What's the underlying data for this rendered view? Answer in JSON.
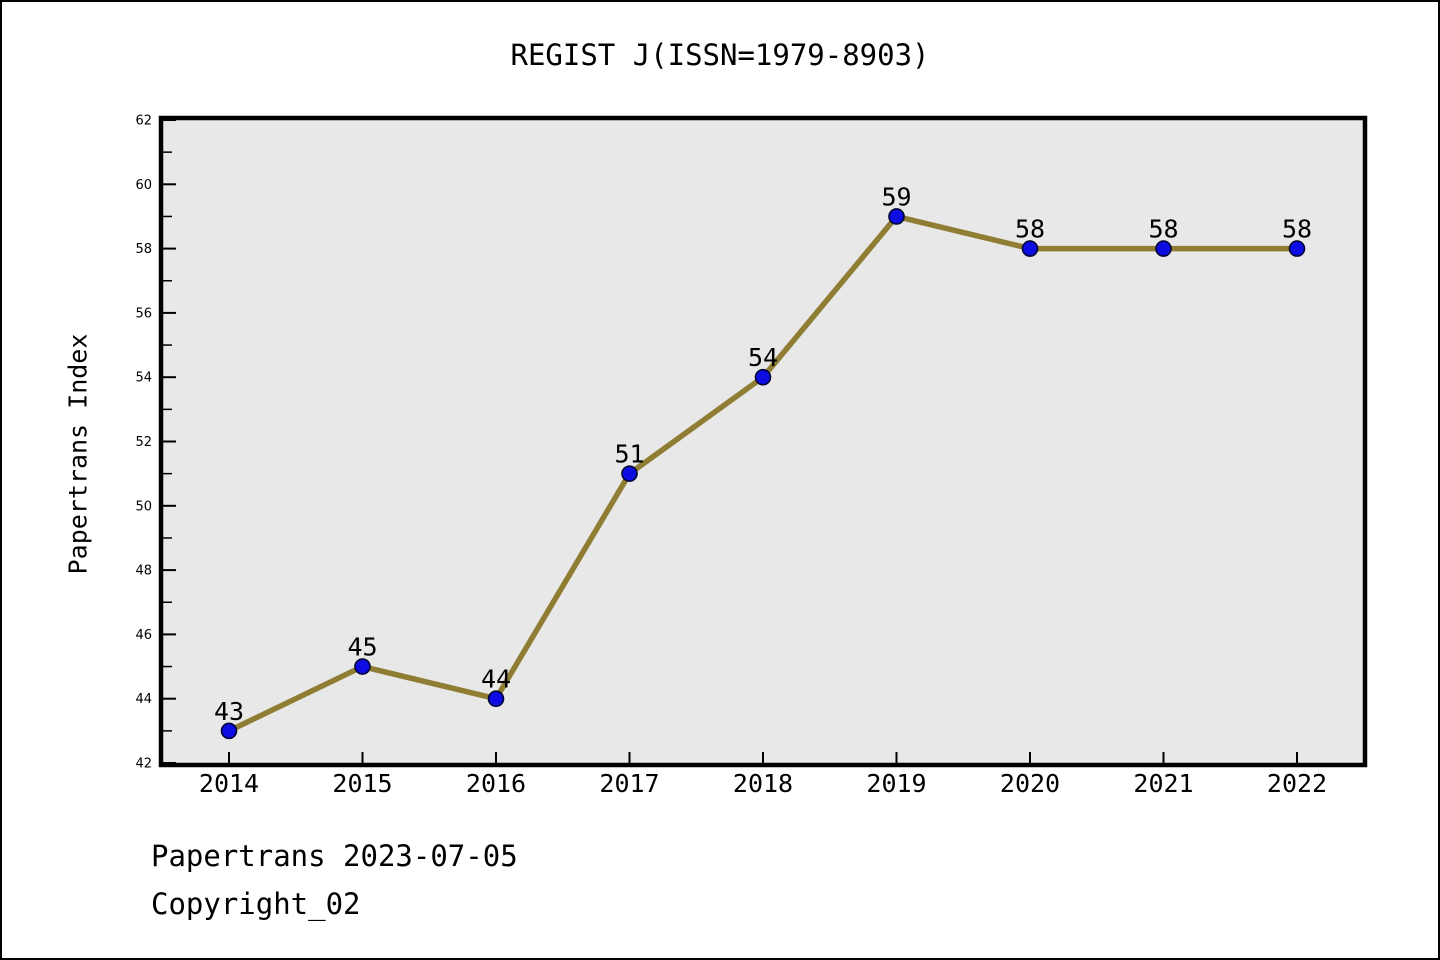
{
  "page": {
    "title": "REGIST J(ISSN=1979-8903)",
    "footer_line1": "Papertrans 2023-07-05",
    "footer_line2": "Copyright_02"
  },
  "chart_data": {
    "type": "line",
    "title": "REGIST J(ISSN=1979-8903)",
    "x": [
      2014,
      2015,
      2016,
      2017,
      2018,
      2019,
      2020,
      2021,
      2022
    ],
    "values": [
      43,
      45,
      44,
      51,
      54,
      59,
      58,
      58,
      58
    ],
    "point_labels": [
      "43",
      "45",
      "44",
      "51",
      "54",
      "59",
      "58",
      "58",
      "58"
    ],
    "xlabel": "",
    "ylabel": "Papertrans Index",
    "ylim": [
      42,
      62
    ],
    "ytick_step": 2,
    "ytick_minor_step": 1,
    "grid": false,
    "legend": "none",
    "colors": {
      "line": "#8F7D33",
      "marker_fill": "#0D0DE3",
      "marker_edge": "#000433",
      "plot_background": "#E8E8E8",
      "axis_frame": "#000000",
      "text": "#000000",
      "figure_background": "#FFFFFF"
    }
  }
}
